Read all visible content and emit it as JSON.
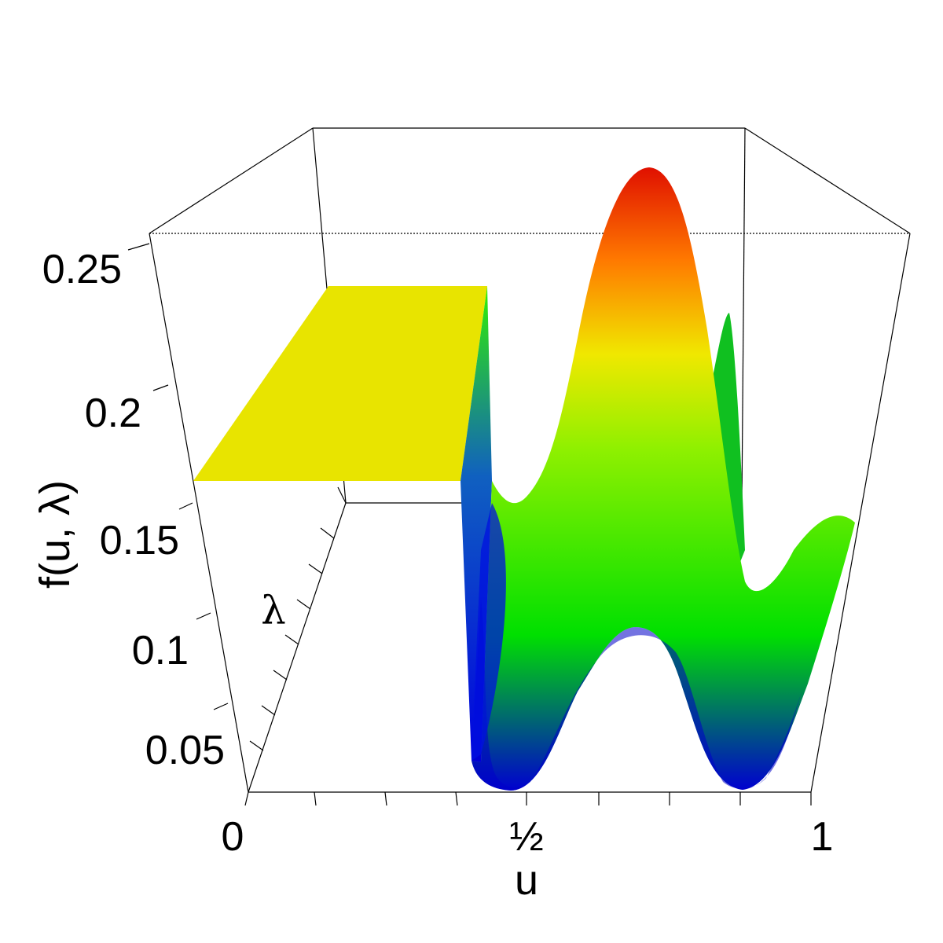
{
  "chart_data": {
    "type": "surface3d",
    "xlabel": "u",
    "ylabel": "λ",
    "zlabel": "f(u, λ)",
    "x_ticks": [
      "0",
      "½",
      "1"
    ],
    "z_ticks": [
      "0.05",
      "0.1",
      "0.15",
      "0.2",
      "0.25"
    ],
    "xlim": [
      0,
      1
    ],
    "zlim": [
      0.03,
      0.27
    ],
    "flat_region": {
      "u_range": [
        0,
        0.45
      ],
      "value": 0.167,
      "color": "#E8E400"
    },
    "front_profile": {
      "u": [
        0.45,
        0.5,
        0.62,
        0.75,
        0.88,
        1.0
      ],
      "f": [
        0.04,
        0.035,
        0.09,
        0.09,
        0.035,
        0.13
      ]
    },
    "back_profile": {
      "u": [
        0.45,
        0.5,
        0.7,
        0.85,
        1.0
      ],
      "f": [
        0.163,
        0.155,
        0.25,
        0.16,
        0.157
      ]
    },
    "peak": {
      "u": 0.72,
      "f": 0.25
    },
    "colormap": [
      "#0000FF",
      "#00FF00",
      "#FFFF00",
      "#FF0000"
    ]
  }
}
